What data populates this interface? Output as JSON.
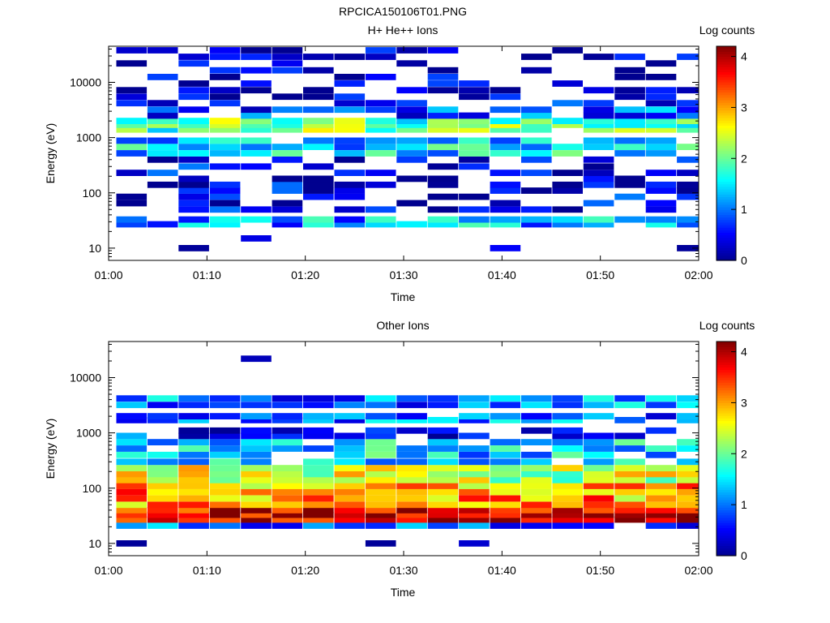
{
  "figure_title": "RPCICA150106T01.PNG",
  "colormap": [
    "#00008f",
    "#0000ff",
    "#0080ff",
    "#00ffff",
    "#80ff80",
    "#ffff00",
    "#ff8000",
    "#ff0000",
    "#800000"
  ],
  "chart_data": [
    {
      "type": "heatmap",
      "title": "H+ He++ Ions",
      "xlabel": "Time",
      "ylabel": "Energy (eV)",
      "colorbar_label": "Log counts",
      "colorbar_ticks": [
        "0",
        "1",
        "2",
        "3",
        "4"
      ],
      "zlim": [
        0,
        4.2
      ],
      "x_ticks": [
        "01:00",
        "01:10",
        "01:20",
        "01:30",
        "01:40",
        "01:50",
        "02:00"
      ],
      "xlim": [
        "01:00",
        "02:00"
      ],
      "y_scale": "log",
      "y_ticks": [
        "10",
        "100",
        "1000",
        "10000"
      ],
      "ylim": [
        6,
        45000
      ],
      "time_bins": [
        "01:02:20",
        "01:05:30",
        "01:08:40",
        "01:11:50",
        "01:15:00",
        "01:18:10",
        "01:21:20",
        "01:24:30",
        "01:27:40",
        "01:30:50",
        "01:34:00",
        "01:37:10",
        "01:40:20",
        "01:43:30",
        "01:46:40",
        "01:49:50",
        "01:53:00",
        "01:56:10",
        "01:59:20"
      ],
      "energy_bins": [
        10,
        15,
        21,
        27,
        33,
        40,
        50,
        65,
        85,
        110,
        140,
        180,
        230,
        300,
        400,
        520,
        680,
        880,
        1100,
        1400,
        1700,
        2000,
        2500,
        3200,
        4200,
        5500,
        7200,
        9500,
        12500,
        16500,
        22000,
        29000,
        38000
      ],
      "profiles": [
        {
          "energy_min": 25,
          "energy_max": 40,
          "level": 1.2,
          "fill": 0.85
        },
        {
          "energy_min": 42,
          "energy_max": 60,
          "level": 0.45,
          "fill": 0.7
        },
        {
          "energy_min": 60,
          "energy_max": 420,
          "level": 0.35,
          "fill": 0.42
        },
        {
          "energy_min": 420,
          "energy_max": 1000,
          "level": 1.4,
          "fill": 0.9
        },
        {
          "energy_min": 1400,
          "energy_max": 2200,
          "level": 2.0,
          "fill": 0.97
        },
        {
          "energy_min": 2200,
          "energy_max": 4500,
          "level": 0.8,
          "fill": 0.7
        },
        {
          "energy_min": 4500,
          "energy_max": 40000,
          "level": 0.12,
          "fill": 0.4
        }
      ],
      "isolated_cells": [
        {
          "time_bin": 3,
          "energy": 10,
          "level": 0.05
        },
        {
          "time_bin": 5,
          "energy": 15,
          "level": 0.4
        },
        {
          "time_bin": 13,
          "energy": 10,
          "level": 0.5
        },
        {
          "time_bin": 19,
          "energy": 10,
          "level": 0.05
        }
      ]
    },
    {
      "type": "heatmap",
      "title": "Other Ions",
      "xlabel": "Time",
      "ylabel": "Energy (eV)",
      "colorbar_label": "Log counts",
      "colorbar_ticks": [
        "0",
        "1",
        "2",
        "3",
        "4"
      ],
      "zlim": [
        0,
        4.2
      ],
      "x_ticks": [
        "01:00",
        "01:10",
        "01:20",
        "01:30",
        "01:40",
        "01:50",
        "02:00"
      ],
      "xlim": [
        "01:00",
        "02:00"
      ],
      "y_scale": "log",
      "y_ticks": [
        "10",
        "100",
        "1000",
        "10000"
      ],
      "ylim": [
        6,
        45000
      ],
      "time_bins": [
        "01:02:20",
        "01:05:30",
        "01:08:40",
        "01:11:50",
        "01:15:00",
        "01:18:10",
        "01:21:20",
        "01:24:30",
        "01:27:40",
        "01:30:50",
        "01:34:00",
        "01:37:10",
        "01:40:20",
        "01:43:30",
        "01:46:40",
        "01:49:50",
        "01:53:00",
        "01:56:10",
        "01:59:20"
      ],
      "energy_bins": [
        10,
        15,
        21,
        27,
        33,
        40,
        50,
        65,
        85,
        110,
        140,
        180,
        230,
        300,
        400,
        520,
        680,
        880,
        1100,
        1400,
        1700,
        2000,
        2500,
        3200,
        4200,
        5500,
        7200,
        9500,
        12500,
        16500,
        22000,
        29000,
        38000
      ],
      "profiles": [
        {
          "energy_min": 19,
          "energy_max": 24,
          "level": 0.9,
          "fill": 0.7
        },
        {
          "energy_min": 24,
          "energy_max": 45,
          "level": 3.8,
          "fill": 1.0
        },
        {
          "energy_min": 45,
          "energy_max": 140,
          "level": 3.0,
          "fill": 1.0
        },
        {
          "energy_min": 140,
          "energy_max": 300,
          "level": 2.4,
          "fill": 1.0
        },
        {
          "energy_min": 300,
          "energy_max": 800,
          "level": 1.4,
          "fill": 0.85
        },
        {
          "energy_min": 800,
          "energy_max": 1300,
          "level": 0.6,
          "fill": 0.55
        },
        {
          "energy_min": 1600,
          "energy_max": 2400,
          "level": 1.0,
          "fill": 0.9
        },
        {
          "energy_min": 3200,
          "energy_max": 4500,
          "level": 1.0,
          "fill": 0.95
        }
      ],
      "isolated_cells": [
        {
          "time_bin": 1,
          "energy": 10,
          "level": 0.05
        },
        {
          "time_bin": 9,
          "energy": 10,
          "level": 0.05
        },
        {
          "time_bin": 12,
          "energy": 10,
          "level": 0.3
        },
        {
          "time_bin": 5,
          "energy": 22000,
          "level": 0.2
        }
      ]
    }
  ]
}
